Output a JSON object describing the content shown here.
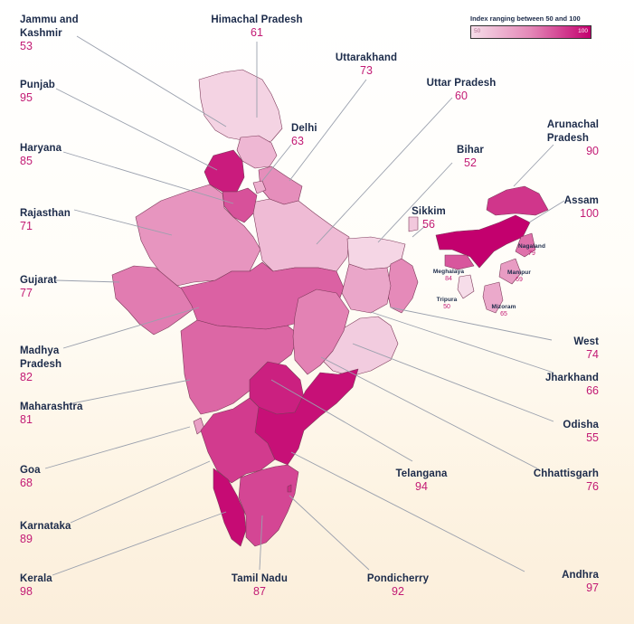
{
  "map_title": "",
  "legend": {
    "title": "Index ranging between 50 and 100",
    "min": "50",
    "max": "100",
    "colors": {
      "low": "#f6dde9",
      "mid": "#e487b7",
      "high": "#c3006e"
    }
  },
  "regions": [
    {
      "key": "jk",
      "name": "Jammu and\nKashmir",
      "value": "53"
    },
    {
      "key": "hp",
      "name": "Himachal Pradesh",
      "value": "61"
    },
    {
      "key": "uk",
      "name": "Uttarakhand",
      "value": "73"
    },
    {
      "key": "up",
      "name": "Uttar Pradesh",
      "value": "60"
    },
    {
      "key": "dl",
      "name": "Delhi",
      "value": "63"
    },
    {
      "key": "pb",
      "name": "Punjab",
      "value": "95"
    },
    {
      "key": "hr",
      "name": "Haryana",
      "value": "85"
    },
    {
      "key": "ar",
      "name": "Arunachal\nPradesh",
      "value": "90"
    },
    {
      "key": "br",
      "name": "Bihar",
      "value": "52"
    },
    {
      "key": "sk",
      "name": "Sikkim",
      "value": "56"
    },
    {
      "key": "as",
      "name": "Assam",
      "value": "100"
    },
    {
      "key": "rj",
      "name": "Rajasthan",
      "value": "71"
    },
    {
      "key": "gj",
      "name": "Gujarat",
      "value": "77"
    },
    {
      "key": "nl",
      "name": "Nagaland",
      "value": "79"
    },
    {
      "key": "ml",
      "name": "Meghalaya",
      "value": "84"
    },
    {
      "key": "mn",
      "name": "Manipur",
      "value": "69"
    },
    {
      "key": "tr",
      "name": "Tripura",
      "value": "50"
    },
    {
      "key": "mz",
      "name": "Mizoram",
      "value": "65"
    },
    {
      "key": "mp",
      "name": "Madhya\nPradesh",
      "value": "82"
    },
    {
      "key": "wb",
      "name": "West",
      "value": "74"
    },
    {
      "key": "jh",
      "name": "Jharkhand",
      "value": "66"
    },
    {
      "key": "mh",
      "name": "Maharashtra",
      "value": "81"
    },
    {
      "key": "od",
      "name": "Odisha",
      "value": "55"
    },
    {
      "key": "ga",
      "name": "Goa",
      "value": "68"
    },
    {
      "key": "tg",
      "name": "Telangana",
      "value": "94"
    },
    {
      "key": "ct",
      "name": "Chhattisgarh",
      "value": "76"
    },
    {
      "key": "ka",
      "name": "Karnataka",
      "value": "89"
    },
    {
      "key": "kl",
      "name": "Kerala",
      "value": "98"
    },
    {
      "key": "tn",
      "name": "Tamil Nadu",
      "value": "87"
    },
    {
      "key": "py",
      "name": "Pondicherry",
      "value": "92"
    },
    {
      "key": "ap",
      "name": "Andhra",
      "value": "97"
    }
  ]
}
